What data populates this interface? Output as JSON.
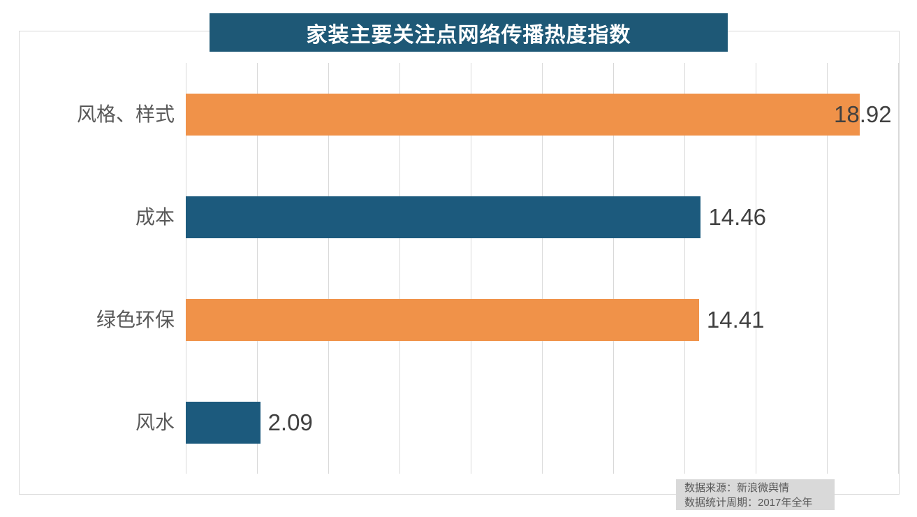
{
  "title_banner": {
    "text": "家装主要关注点网络传播热度指数"
  },
  "source_note": {
    "line1": "数据来源：新浪微舆情",
    "line2": "数据统计周期：2017年全年"
  },
  "colors": {
    "banner_bg": "#1E5876",
    "banner_text": "#ffffff",
    "orange": "#F09249",
    "teal": "#1C5A7D",
    "gridline": "#d9d9d9",
    "frame_border": "#d9d9d9",
    "category_text": "#595959",
    "value_text": "#404040",
    "source_bg": "#d9d9d9",
    "source_text": "#595959"
  },
  "chart_data": {
    "type": "bar",
    "orientation": "horizontal",
    "title": "家装主要关注点网络传播热度指数",
    "categories": [
      "风格、样式",
      "成本",
      "绿色环保",
      "风水"
    ],
    "values": [
      18.92,
      14.46,
      14.41,
      2.09
    ],
    "value_labels": [
      "18.92",
      "14.46",
      "14.41",
      "2.09"
    ],
    "bar_color_keys": [
      "orange",
      "teal",
      "orange",
      "teal"
    ],
    "xlabel": "",
    "ylabel": "",
    "xlim": [
      0,
      20
    ],
    "grid_step": 2,
    "grid": true,
    "legend": false
  }
}
